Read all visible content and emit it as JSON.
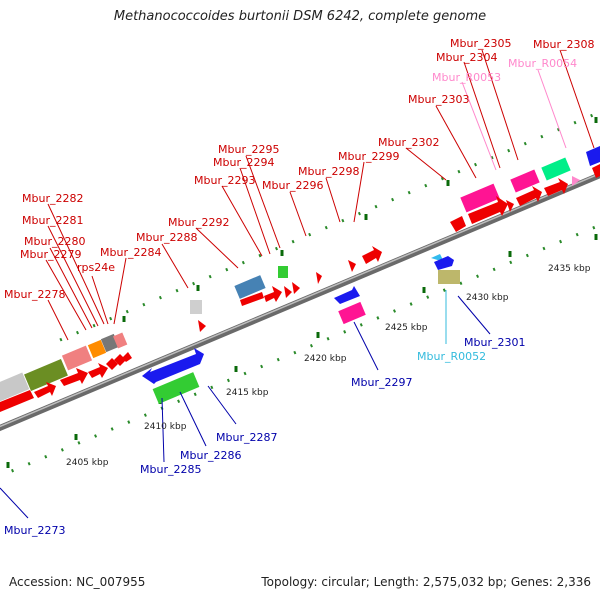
{
  "title": "Methanococcoides burtonii DSM 6242, complete genome",
  "accession": "Accession: NC_007955",
  "topology": "Topology: circular; Length: 2,575,032 bp; Genes: 2,336",
  "colors": {
    "label_forward": "#cc0000",
    "label_reverse": "#0000aa",
    "label_rna_forward": "#ff88cc",
    "label_rna_reverse": "#33bbdd",
    "backbone": "#888888",
    "tick_dot": "#2a8a2a",
    "tick_major": "#0a6a0a"
  },
  "position_labels": [
    {
      "text": "2405 kbp",
      "kbp": 2405
    },
    {
      "text": "2410 kbp",
      "kbp": 2410
    },
    {
      "text": "2415 kbp",
      "kbp": 2415
    },
    {
      "text": "2420 kbp",
      "kbp": 2420
    },
    {
      "text": "2425 kbp",
      "kbp": 2425
    },
    {
      "text": "2430 kbp",
      "kbp": 2430
    },
    {
      "text": "2435 kbp",
      "kbp": 2435
    }
  ],
  "gene_labels": {
    "forward": [
      "Mbur_2278",
      "Mbur_2279",
      "Mbur_2280",
      "Mbur_2281",
      "Mbur_2282",
      "rps24e",
      "Mbur_2284",
      "Mbur_2288",
      "Mbur_2292",
      "Mbur_2293",
      "Mbur_2294",
      "Mbur_2295",
      "Mbur_2296",
      "Mbur_2298",
      "Mbur_2299",
      "Mbur_2302",
      "Mbur_2303",
      "Mbur_2304",
      "Mbur_2305",
      "Mbur_2308"
    ],
    "forward_rna": [
      "Mbur_R0053",
      "Mbur_R0054"
    ],
    "reverse": [
      "Mbur_2273",
      "Mbur_2285",
      "Mbur_2286",
      "Mbur_2287",
      "Mbur_2297",
      "Mbur_2301"
    ],
    "reverse_rna": [
      "Mbur_R0052"
    ]
  },
  "legend": []
}
